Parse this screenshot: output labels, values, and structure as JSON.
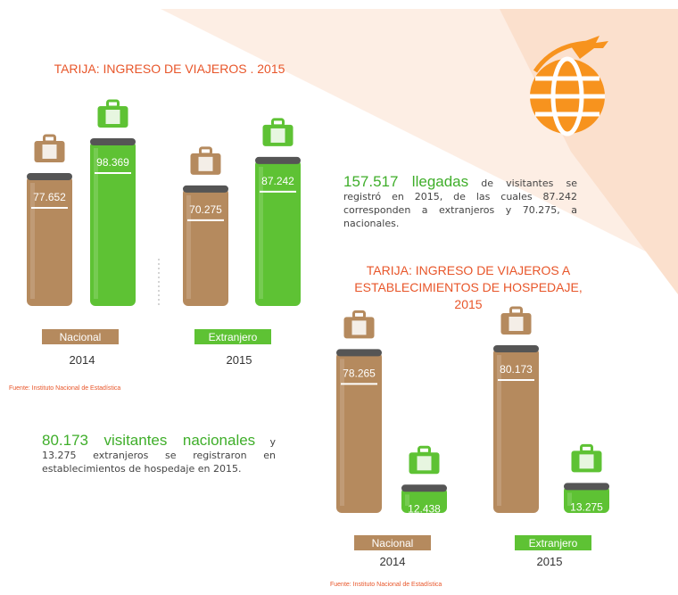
{
  "chart_data": [
    {
      "type": "bar",
      "title": "TARIJA: INGRESO DE VIAJEROS . 2015",
      "categories": [
        "2014",
        "2015"
      ],
      "series": [
        {
          "name": "Nacional",
          "color": "#b58a5e",
          "values": [
            77652,
            70275
          ],
          "value_labels": [
            "77.652",
            "70.275"
          ]
        },
        {
          "name": "Extranjero",
          "color": "#5ec234",
          "values": [
            98369,
            87242
          ],
          "value_labels": [
            "98.369",
            "87.242"
          ]
        }
      ],
      "source": "Fuente: Instituto Nacional de Estadística"
    },
    {
      "type": "bar",
      "title": "TARIJA: INGRESO DE VIAJEROS A ESTABLECIMIENTOS DE HOSPEDAJE, 2015",
      "categories": [
        "2014",
        "2015"
      ],
      "series": [
        {
          "name": "Nacional",
          "color": "#b58a5e",
          "values": [
            78265,
            80173
          ],
          "value_labels": [
            "78.265",
            "80.173"
          ]
        },
        {
          "name": "Extranjero",
          "color": "#5ec234",
          "values": [
            12438,
            13275
          ],
          "value_labels": [
            "12.438",
            "13.275"
          ]
        }
      ],
      "source": "Fuente: Instituto Nacional de Estadística"
    }
  ],
  "notes": [
    {
      "highlight": "157.517 llegadas",
      "text": "de visitantes se registró en 2015, de las cuales 87.242 corresponden a extranjeros y 70.275, a nacionales."
    },
    {
      "highlight": "80.173 visitantes nacionales",
      "text": "y 13.275 extranjeros se registraron en establecimientos de hospedaje en 2015."
    }
  ]
}
